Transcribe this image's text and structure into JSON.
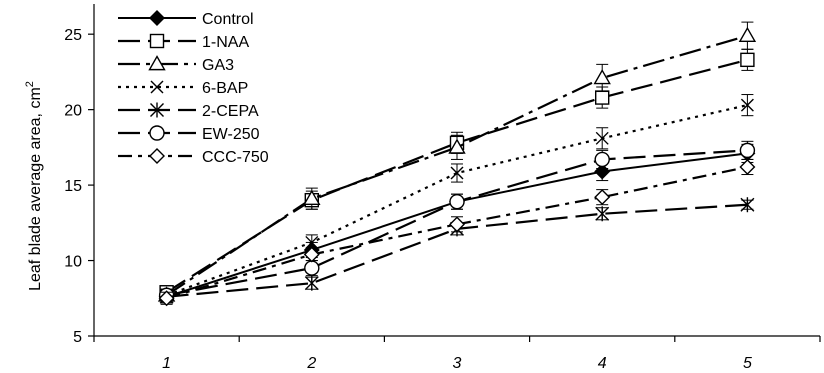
{
  "chart_data": {
    "type": "line",
    "title": "",
    "xlabel": "",
    "ylabel": "Leaf blade average area, cm",
    "ylabel_superscript": "2",
    "ylim": [
      5,
      27
    ],
    "yticks": [
      5,
      10,
      15,
      20,
      25
    ],
    "x": [
      "1",
      "2",
      "3",
      "4",
      "5"
    ],
    "grid": false,
    "legend_position": "top-left",
    "series": [
      {
        "name": "Control",
        "dash": "solid",
        "marker": "diamond-filled",
        "values": [
          7.6,
          10.7,
          13.9,
          15.9,
          17.1
        ],
        "errors": [
          0.4,
          0.5,
          0.5,
          0.6,
          0.6
        ]
      },
      {
        "name": "1-NAA",
        "dash": "long-dash",
        "marker": "square-open",
        "values": [
          7.9,
          14.0,
          17.8,
          20.8,
          23.3
        ],
        "errors": [
          0.4,
          0.6,
          0.7,
          0.7,
          0.7
        ]
      },
      {
        "name": "GA3",
        "dash": "long-dash-dot",
        "marker": "triangle-open",
        "values": [
          7.7,
          14.1,
          17.5,
          22.1,
          24.9
        ],
        "errors": [
          0.4,
          0.7,
          0.8,
          0.9,
          0.9
        ]
      },
      {
        "name": "6-BAP",
        "dash": "dot",
        "marker": "x",
        "values": [
          7.7,
          11.2,
          15.8,
          18.1,
          20.3
        ],
        "errors": [
          0.4,
          0.5,
          0.6,
          0.7,
          0.7
        ]
      },
      {
        "name": "2-CEPA",
        "dash": "long-dash",
        "marker": "asterisk",
        "values": [
          7.6,
          8.5,
          12.1,
          13.1,
          13.7
        ],
        "errors": [
          0.4,
          0.4,
          0.4,
          0.4,
          0.3
        ]
      },
      {
        "name": "EW-250",
        "dash": "long-dash",
        "marker": "circle-open",
        "values": [
          7.7,
          9.5,
          13.9,
          16.7,
          17.3
        ],
        "errors": [
          0.4,
          0.5,
          0.5,
          0.6,
          0.6
        ]
      },
      {
        "name": "CCC-750",
        "dash": "dash-dot",
        "marker": "diamond-open",
        "values": [
          7.5,
          10.4,
          12.4,
          14.2,
          16.2
        ],
        "errors": [
          0.4,
          0.4,
          0.5,
          0.5,
          0.5
        ]
      }
    ]
  }
}
